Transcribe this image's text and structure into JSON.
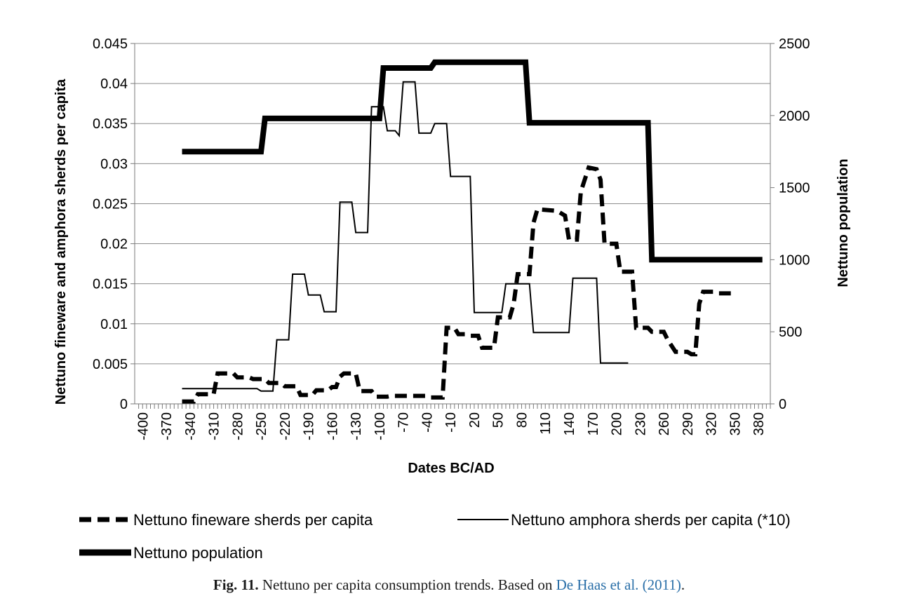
{
  "chart_data": {
    "type": "line",
    "xlabel": "Dates BC/AD",
    "ylabel_left": "Nettuno fineware and amphora sherds per capita",
    "ylabel_right": "Nettuno population",
    "xlim": [
      -410,
      395
    ],
    "ylim_left": [
      0,
      0.045
    ],
    "ylim_right": [
      0,
      2500
    ],
    "x_ticks": [
      -400,
      -370,
      -340,
      -310,
      -280,
      -250,
      -220,
      -190,
      -160,
      -130,
      -100,
      -70,
      -40,
      -10,
      20,
      50,
      80,
      110,
      140,
      170,
      200,
      230,
      260,
      290,
      320,
      350,
      380
    ],
    "y_left_ticks": [
      "0",
      "0.005",
      "0.01",
      "0.015",
      "0.02",
      "0.025",
      "0.03",
      "0.035",
      "0.04",
      "0.045"
    ],
    "y_left_values": [
      0,
      0.005,
      0.01,
      0.015,
      0.02,
      0.025,
      0.03,
      0.035,
      0.04,
      0.045
    ],
    "y_right_ticks": [
      "0",
      "500",
      "1000",
      "1500",
      "2000",
      "2500"
    ],
    "y_right_values": [
      0,
      500,
      1000,
      1500,
      2000,
      2500
    ],
    "grid": "horizontal",
    "legend_position": "bottom",
    "series": [
      {
        "name": "Nettuno fineware sherds per capita",
        "axis": "left",
        "style": "dashed",
        "points": [
          [
            -350,
            0.0003
          ],
          [
            -335,
            0.0003
          ],
          [
            -330,
            0.0012
          ],
          [
            -310,
            0.0012
          ],
          [
            -305,
            0.0038
          ],
          [
            -285,
            0.0038
          ],
          [
            -280,
            0.0033
          ],
          [
            -265,
            0.0033
          ],
          [
            -260,
            0.0031
          ],
          [
            -245,
            0.0031
          ],
          [
            -240,
            0.0026
          ],
          [
            -225,
            0.0026
          ],
          [
            -220,
            0.0022
          ],
          [
            -205,
            0.0022
          ],
          [
            -200,
            0.0011
          ],
          [
            -185,
            0.0011
          ],
          [
            -180,
            0.0017
          ],
          [
            -165,
            0.0017
          ],
          [
            -160,
            0.0021
          ],
          [
            -155,
            0.0021
          ],
          [
            -150,
            0.0034
          ],
          [
            -145,
            0.0038
          ],
          [
            -130,
            0.0038
          ],
          [
            -125,
            0.0016
          ],
          [
            -110,
            0.0016
          ],
          [
            -105,
            0.0009
          ],
          [
            -90,
            0.0009
          ],
          [
            -85,
            0.001
          ],
          [
            -40,
            0.001
          ],
          [
            -35,
            0.0008
          ],
          [
            -20,
            0.0008
          ],
          [
            -15,
            0.0095
          ],
          [
            -5,
            0.0095
          ],
          [
            0,
            0.0087
          ],
          [
            10,
            0.0087
          ],
          [
            15,
            0.0085
          ],
          [
            25,
            0.0085
          ],
          [
            30,
            0.007
          ],
          [
            45,
            0.007
          ],
          [
            50,
            0.0108
          ],
          [
            65,
            0.0108
          ],
          [
            70,
            0.0125
          ],
          [
            75,
            0.0162
          ],
          [
            90,
            0.0162
          ],
          [
            95,
            0.0226
          ],
          [
            100,
            0.0243
          ],
          [
            125,
            0.0241
          ],
          [
            135,
            0.0235
          ],
          [
            140,
            0.0205
          ],
          [
            150,
            0.0205
          ],
          [
            155,
            0.0265
          ],
          [
            165,
            0.0295
          ],
          [
            175,
            0.0293
          ],
          [
            180,
            0.028
          ],
          [
            185,
            0.02
          ],
          [
            200,
            0.02
          ],
          [
            205,
            0.0165
          ],
          [
            220,
            0.0165
          ],
          [
            225,
            0.0095
          ],
          [
            240,
            0.0095
          ],
          [
            245,
            0.009
          ],
          [
            260,
            0.009
          ],
          [
            265,
            0.008
          ],
          [
            275,
            0.0065
          ],
          [
            290,
            0.0065
          ],
          [
            295,
            0.0062
          ],
          [
            300,
            0.0062
          ],
          [
            305,
            0.0125
          ],
          [
            310,
            0.014
          ],
          [
            325,
            0.014
          ],
          [
            330,
            0.0138
          ],
          [
            345,
            0.0138
          ]
        ]
      },
      {
        "name": "Nettuno amphora sherds per capita (*10)",
        "axis": "left",
        "style": "thin",
        "points": [
          [
            -350,
            0.0019
          ],
          [
            -255,
            0.0019
          ],
          [
            -250,
            0.0016
          ],
          [
            -235,
            0.0016
          ],
          [
            -230,
            0.008
          ],
          [
            -215,
            0.008
          ],
          [
            -210,
            0.0162
          ],
          [
            -195,
            0.0162
          ],
          [
            -190,
            0.0136
          ],
          [
            -175,
            0.0136
          ],
          [
            -170,
            0.0115
          ],
          [
            -155,
            0.0115
          ],
          [
            -150,
            0.0252
          ],
          [
            -135,
            0.0252
          ],
          [
            -130,
            0.0214
          ],
          [
            -115,
            0.0214
          ],
          [
            -110,
            0.0371
          ],
          [
            -95,
            0.0371
          ],
          [
            -90,
            0.0341
          ],
          [
            -80,
            0.0341
          ],
          [
            -75,
            0.0335
          ],
          [
            -70,
            0.0402
          ],
          [
            -55,
            0.0402
          ],
          [
            -50,
            0.0338
          ],
          [
            -35,
            0.0338
          ],
          [
            -30,
            0.035
          ],
          [
            -15,
            0.035
          ],
          [
            -10,
            0.0284
          ],
          [
            15,
            0.0284
          ],
          [
            20,
            0.0114
          ],
          [
            55,
            0.0114
          ],
          [
            60,
            0.015
          ],
          [
            90,
            0.015
          ],
          [
            95,
            0.0089
          ],
          [
            140,
            0.0089
          ],
          [
            145,
            0.0157
          ],
          [
            175,
            0.0157
          ],
          [
            180,
            0.0051
          ],
          [
            215,
            0.0051
          ]
        ]
      },
      {
        "name": "Nettuno population",
        "axis": "right",
        "style": "thick",
        "points": [
          [
            -350,
            1750
          ],
          [
            -250,
            1750
          ],
          [
            -245,
            1980
          ],
          [
            -100,
            1980
          ],
          [
            -95,
            2330
          ],
          [
            -35,
            2330
          ],
          [
            -30,
            2370
          ],
          [
            85,
            2370
          ],
          [
            90,
            1950
          ],
          [
            240,
            1950
          ],
          [
            245,
            1000
          ],
          [
            385,
            1000
          ]
        ]
      }
    ]
  },
  "caption": {
    "label": "Fig. 11.",
    "text": " Nettuno per capita consumption trends. Based on ",
    "cite": "De Haas et al. (2011)",
    "end": "."
  }
}
